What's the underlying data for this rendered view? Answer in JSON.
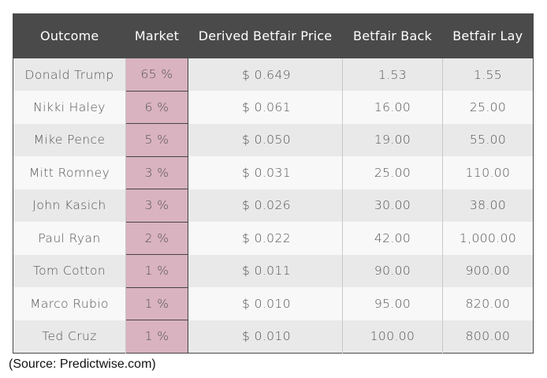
{
  "table": {
    "headers": [
      "Outcome",
      "Market",
      "Derived Betfair Price",
      "Betfair Back",
      "Betfair Lay"
    ],
    "rows": [
      [
        "Donald Trump",
        "65 %",
        "$ 0.649",
        "1.53",
        "1.55"
      ],
      [
        "Nikki Haley",
        "6 %",
        "$ 0.061",
        "16.00",
        "25.00"
      ],
      [
        "Mike Pence",
        "5 %",
        "$ 0.050",
        "19.00",
        "55.00"
      ],
      [
        "Mitt Romney",
        "3 %",
        "$ 0.031",
        "25.00",
        "110.00"
      ],
      [
        "John Kasich",
        "3 %",
        "$ 0.026",
        "30.00",
        "38.00"
      ],
      [
        "Paul Ryan",
        "2 %",
        "$ 0.022",
        "42.00",
        "1,000.00"
      ],
      [
        "Tom Cotton",
        "1 %",
        "$ 0.011",
        "90.00",
        "900.00"
      ],
      [
        "Marco Rubio",
        "1 %",
        "$ 0.010",
        "95.00",
        "820.00"
      ],
      [
        "Ted Cruz",
        "1 %",
        "$ 0.010",
        "100.00",
        "800.00"
      ]
    ]
  },
  "source": "(Source: Predictwise.com)",
  "colors": {
    "header_bg": "#4a4a4a",
    "market_highlight": "#d9b3bf",
    "row_odd": "#e9e9e9",
    "row_even": "#f8f8f8"
  }
}
